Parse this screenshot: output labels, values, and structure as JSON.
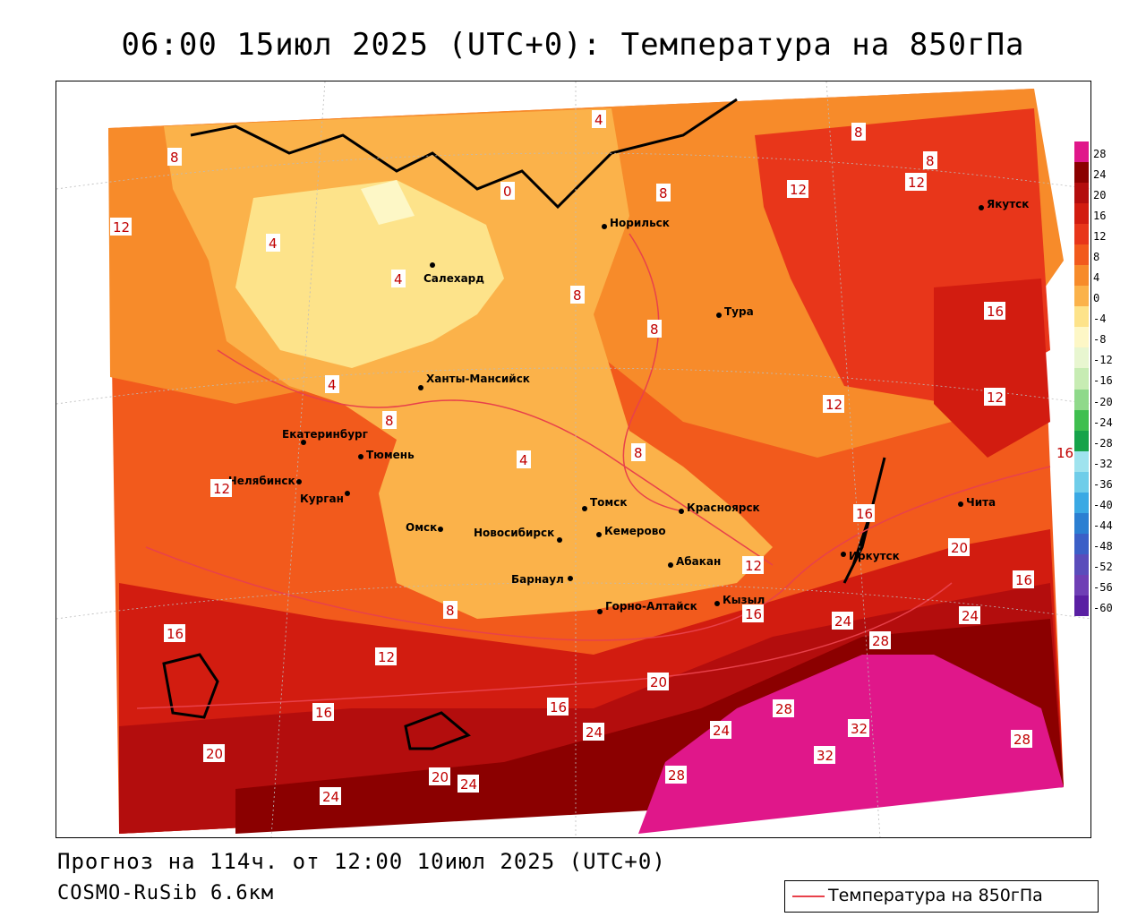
{
  "title": "06:00 15июл 2025 (UTC+0): Температура на 850гПа",
  "footer": {
    "forecast": "Прогноз на 114ч. от 12:00 10июл 2025 (UTC+0)",
    "model": "COSMO-RuSib 6.6км"
  },
  "legend": {
    "line_label": "Температура на 850гПа",
    "line_color": "#e8414b"
  },
  "colorbar": {
    "ticks": [
      "28",
      "24",
      "20",
      "16",
      "12",
      "8",
      "4",
      "0",
      "-4",
      "-8",
      "-12",
      "-16",
      "-20",
      "-24",
      "-28",
      "-32",
      "-36",
      "-40",
      "-44",
      "-48",
      "-52",
      "-56",
      "-60"
    ],
    "colors": [
      "#e0178a",
      "#8b0000",
      "#b30d0d",
      "#d21c10",
      "#e8361a",
      "#f25a1c",
      "#f78b2a",
      "#fbb24a",
      "#fde38a",
      "#fdf7c6",
      "#e8f6d0",
      "#c7ecb3",
      "#8fd98a",
      "#3fbf4f",
      "#16a34a",
      "#9fe3ee",
      "#6fcde9",
      "#3aa9e4",
      "#2b7fd2",
      "#3b5fc7",
      "#5a4cbb",
      "#6f3fb5",
      "#5a1fa3"
    ]
  },
  "cities": [
    {
      "name": "Салехард"
    },
    {
      "name": "Норильск"
    },
    {
      "name": "Якутск"
    },
    {
      "name": "Тура"
    },
    {
      "name": "Ханты-Мансийск"
    },
    {
      "name": "Екатеринбург"
    },
    {
      "name": "Тюмень"
    },
    {
      "name": "Челябинск"
    },
    {
      "name": "Курган"
    },
    {
      "name": "Омск"
    },
    {
      "name": "Новосибирск"
    },
    {
      "name": "Томск"
    },
    {
      "name": "Кемерово"
    },
    {
      "name": "Красноярск"
    },
    {
      "name": "Абакан"
    },
    {
      "name": "Барнаул"
    },
    {
      "name": "Горно-Алтайск"
    },
    {
      "name": "Кызыл"
    },
    {
      "name": "Иркутск"
    },
    {
      "name": "Чита"
    }
  ],
  "isotherm_labels": [
    "4",
    "8",
    "12",
    "16",
    "20",
    "24",
    "28",
    "32",
    "0"
  ]
}
